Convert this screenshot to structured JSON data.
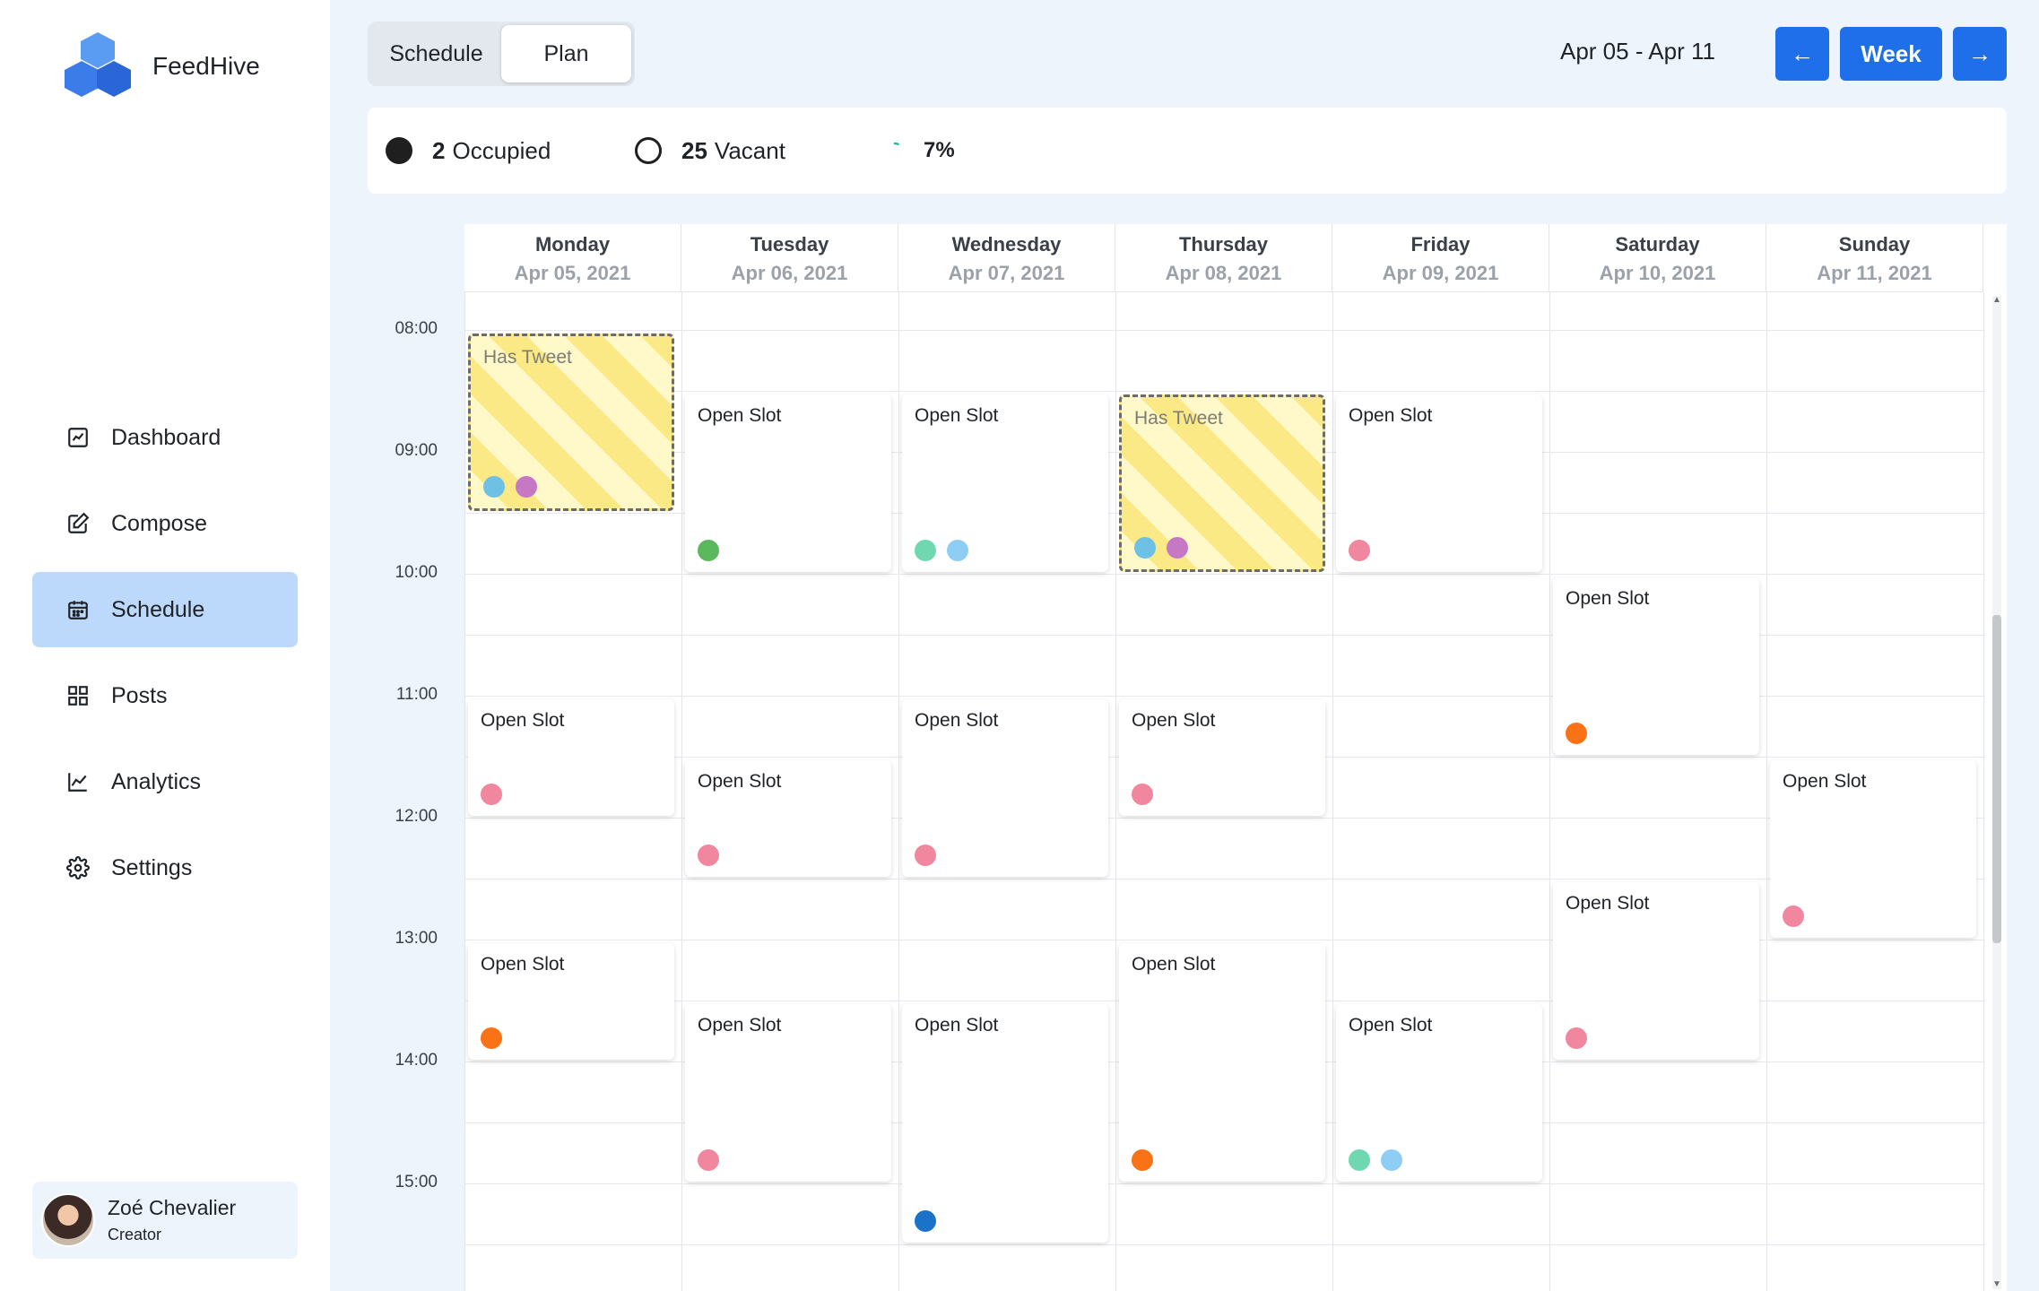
{
  "brand": {
    "name": "FeedHive"
  },
  "sidebar": {
    "items": [
      {
        "label": "Dashboard",
        "icon": "dashboard-icon",
        "active": false
      },
      {
        "label": "Compose",
        "icon": "compose-icon",
        "active": false
      },
      {
        "label": "Schedule",
        "icon": "calendar-icon",
        "active": true
      },
      {
        "label": "Posts",
        "icon": "grid-icon",
        "active": false
      },
      {
        "label": "Analytics",
        "icon": "chart-icon",
        "active": false
      },
      {
        "label": "Settings",
        "icon": "gear-icon",
        "active": false
      }
    ],
    "user": {
      "name": "Zoé Chevalier",
      "role": "Creator"
    }
  },
  "header": {
    "tabs": [
      {
        "label": "Schedule",
        "active": false
      },
      {
        "label": "Plan",
        "active": true
      }
    ],
    "date_range": "Apr 05 - Apr 11",
    "prev_label": "←",
    "week_label": "Week",
    "next_label": "→"
  },
  "stats": {
    "occupied_count": "2",
    "occupied_label": "Occupied",
    "vacant_count": "25",
    "vacant_label": "Vacant",
    "percent": "7%",
    "percent_value": 0.07
  },
  "calendar": {
    "days": [
      {
        "name": "Monday",
        "date": "Apr 05, 2021"
      },
      {
        "name": "Tuesday",
        "date": "Apr 06, 2021"
      },
      {
        "name": "Wednesday",
        "date": "Apr 07, 2021"
      },
      {
        "name": "Thursday",
        "date": "Apr 08, 2021"
      },
      {
        "name": "Friday",
        "date": "Apr 09, 2021"
      },
      {
        "name": "Saturday",
        "date": "Apr 10, 2021"
      },
      {
        "name": "Sunday",
        "date": "Apr 11, 2021"
      }
    ],
    "times": [
      "08:00",
      "09:00",
      "10:00",
      "11:00",
      "12:00",
      "13:00",
      "14:00",
      "15:00"
    ],
    "slots": [
      {
        "day": 0,
        "start": "08:00",
        "end": "09:30",
        "title": "Has Tweet",
        "type": "tweet",
        "dots": [
          "#6ec1e4",
          "#c678c4"
        ]
      },
      {
        "day": 1,
        "start": "08:30",
        "end": "10:00",
        "title": "Open Slot",
        "type": "open",
        "dots": [
          "#5cb85c"
        ]
      },
      {
        "day": 2,
        "start": "08:30",
        "end": "10:00",
        "title": "Open Slot",
        "type": "open",
        "dots": [
          "#6fd8b0",
          "#8ecdf4"
        ]
      },
      {
        "day": 3,
        "start": "08:30",
        "end": "10:00",
        "title": "Has Tweet",
        "type": "tweet",
        "dots": [
          "#6ec1e4",
          "#c678c4"
        ]
      },
      {
        "day": 4,
        "start": "08:30",
        "end": "10:00",
        "title": "Open Slot",
        "type": "open",
        "dots": [
          "#f0879e"
        ]
      },
      {
        "day": 5,
        "start": "10:00",
        "end": "11:30",
        "title": "Open Slot",
        "type": "open",
        "dots": [
          "#f97316"
        ]
      },
      {
        "day": 0,
        "start": "11:00",
        "end": "12:00",
        "title": "Open Slot",
        "type": "open",
        "dots": [
          "#f0879e"
        ]
      },
      {
        "day": 1,
        "start": "11:30",
        "end": "12:30",
        "title": "Open Slot",
        "type": "open",
        "dots": [
          "#f0879e"
        ]
      },
      {
        "day": 2,
        "start": "11:00",
        "end": "12:30",
        "title": "Open Slot",
        "type": "open",
        "dots": [
          "#f0879e"
        ]
      },
      {
        "day": 3,
        "start": "11:00",
        "end": "12:00",
        "title": "Open Slot",
        "type": "open",
        "dots": [
          "#f0879e"
        ]
      },
      {
        "day": 6,
        "start": "11:30",
        "end": "13:00",
        "title": "Open Slot",
        "type": "open",
        "dots": [
          "#f0879e"
        ]
      },
      {
        "day": 5,
        "start": "12:30",
        "end": "14:00",
        "title": "Open Slot",
        "type": "open",
        "dots": [
          "#f0879e"
        ]
      },
      {
        "day": 0,
        "start": "13:00",
        "end": "14:00",
        "title": "Open Slot",
        "type": "open",
        "dots": [
          "#f97316"
        ]
      },
      {
        "day": 1,
        "start": "13:30",
        "end": "15:00",
        "title": "Open Slot",
        "type": "open",
        "dots": [
          "#f0879e"
        ]
      },
      {
        "day": 2,
        "start": "13:30",
        "end": "15:30",
        "title": "Open Slot",
        "type": "open",
        "dots": [
          "#1a73c8"
        ]
      },
      {
        "day": 3,
        "start": "13:00",
        "end": "15:00",
        "title": "Open Slot",
        "type": "open",
        "dots": [
          "#f97316"
        ]
      },
      {
        "day": 4,
        "start": "13:30",
        "end": "15:00",
        "title": "Open Slot",
        "type": "open",
        "dots": [
          "#6fd8b0",
          "#8ecdf4"
        ]
      }
    ]
  },
  "colors": {
    "accent": "#1f6feb",
    "active_nav": "#bcd8fb",
    "background": "#eef4fc"
  }
}
